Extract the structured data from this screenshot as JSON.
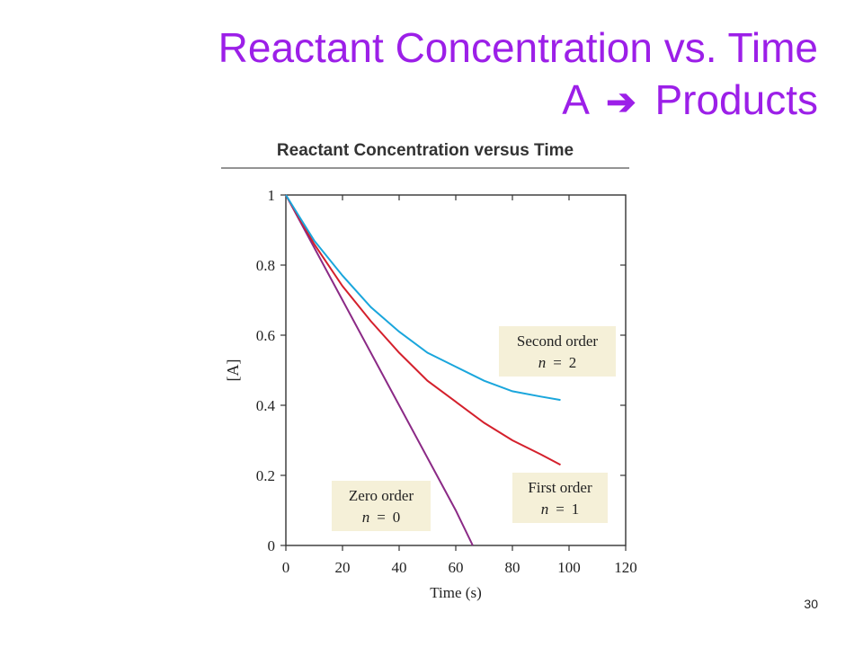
{
  "slide": {
    "title_line1": "Reactant Concentration vs. Time",
    "title_line2_reactant": "A",
    "title_line2_arrow_icon": "right-arrow-icon",
    "title_line2_products": "Products",
    "page_number": "30"
  },
  "colors": {
    "title": "#9c1fe8",
    "zero_order": "#8b2a86",
    "first_order": "#d4202c",
    "second_order": "#1aa6dc",
    "label_box": "#f5f0d8"
  },
  "chart_data": {
    "type": "line",
    "title": "Reactant Concentration versus Time",
    "xlabel": "Time (s)",
    "ylabel": "[A]",
    "xlim": [
      0,
      120
    ],
    "ylim": [
      0,
      1
    ],
    "xticks": [
      0,
      20,
      40,
      60,
      80,
      100,
      120
    ],
    "yticks": [
      0,
      0.2,
      0.4,
      0.6,
      0.8,
      1
    ],
    "ytick_labels": [
      "0",
      "0.2",
      "0.4",
      "0.6",
      "0.8",
      "1"
    ],
    "grid": false,
    "series": [
      {
        "key": "zero",
        "label_line1": "Zero order",
        "label_var": "n",
        "label_eq": "=",
        "label_val": "0",
        "color": "#8b2a86",
        "x": [
          0,
          10,
          20,
          30,
          40,
          50,
          60,
          66
        ],
        "y": [
          1.0,
          0.85,
          0.7,
          0.55,
          0.4,
          0.25,
          0.1,
          0.0
        ]
      },
      {
        "key": "first",
        "label_line1": "First order",
        "label_var": "n",
        "label_eq": "=",
        "label_val": "1",
        "color": "#d4202c",
        "x": [
          0,
          10,
          20,
          30,
          40,
          50,
          60,
          70,
          80,
          90,
          97
        ],
        "y": [
          1.0,
          0.86,
          0.74,
          0.64,
          0.55,
          0.47,
          0.41,
          0.35,
          0.3,
          0.26,
          0.23
        ]
      },
      {
        "key": "second",
        "label_line1": "Second order",
        "label_var": "n",
        "label_eq": "=",
        "label_val": "2",
        "color": "#1aa6dc",
        "x": [
          0,
          10,
          20,
          30,
          40,
          50,
          60,
          70,
          80,
          90,
          97
        ],
        "y": [
          1.0,
          0.87,
          0.77,
          0.68,
          0.61,
          0.55,
          0.51,
          0.47,
          0.44,
          0.425,
          0.415
        ]
      }
    ]
  }
}
